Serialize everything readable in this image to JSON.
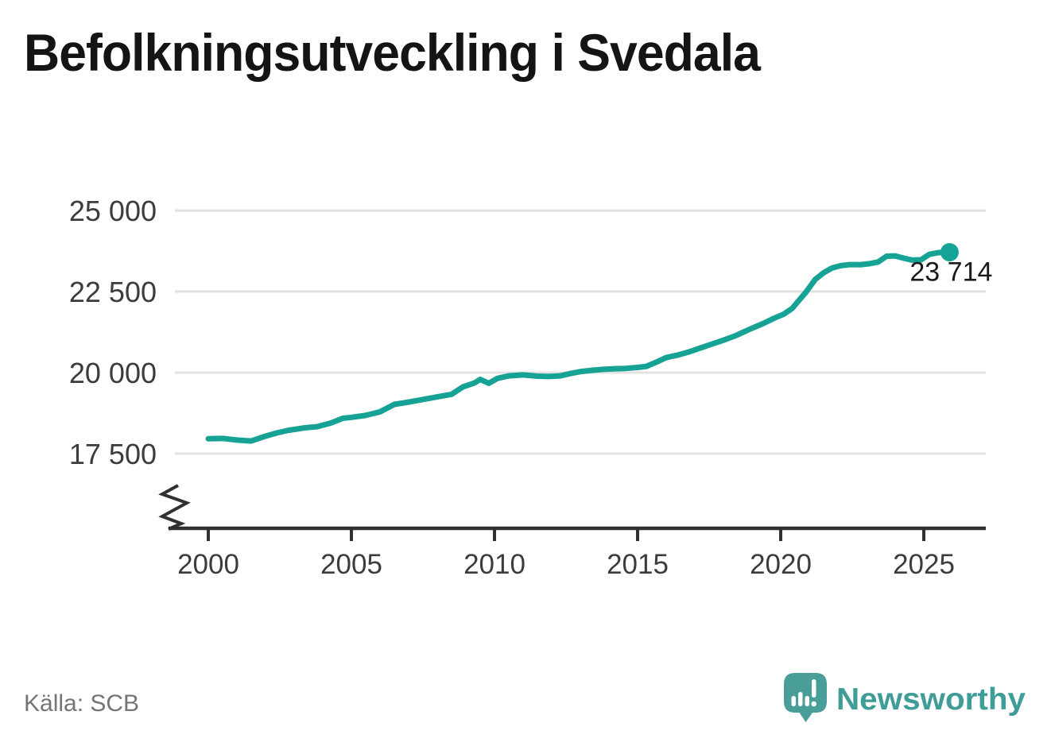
{
  "title": "Befolkningsutveckling i Svedala",
  "source": "Källa: SCB",
  "brand": {
    "name": "Newsworthy"
  },
  "colors": {
    "line": "#16a294",
    "grid": "#e2e2e2",
    "axis": "#303030",
    "tick_text": "#3c3c3c",
    "label_text": "#1a1a1a",
    "source_text": "#757575",
    "logo_bubble": "#4a9e99",
    "brand_teal": "#3f9c96"
  },
  "chart_data": {
    "type": "line",
    "title": "Befolkningsutveckling i Svedala",
    "xlabel": "",
    "ylabel": "",
    "xlim": [
      2000,
      2026.3
    ],
    "ylim": [
      17500,
      25000
    ],
    "grid": "horizontal",
    "legend": "none",
    "axis_break_bottom_left": true,
    "end_label": "23 714",
    "end_value": 23714,
    "yticks": [
      {
        "value": 25000,
        "label": "25 000"
      },
      {
        "value": 22500,
        "label": "22 500"
      },
      {
        "value": 20000,
        "label": "20 000"
      },
      {
        "value": 17500,
        "label": "17 500"
      }
    ],
    "xticks": [
      {
        "value": 2000,
        "label": "2000"
      },
      {
        "value": 2005,
        "label": "2005"
      },
      {
        "value": 2010,
        "label": "2010"
      },
      {
        "value": 2015,
        "label": "2015"
      },
      {
        "value": 2020,
        "label": "2020"
      },
      {
        "value": 2025,
        "label": "2025"
      }
    ],
    "series": [
      {
        "points": [
          [
            2000.0,
            17960
          ],
          [
            2000.5,
            17970
          ],
          [
            2001.0,
            17920
          ],
          [
            2001.5,
            17890
          ],
          [
            2002.0,
            18040
          ],
          [
            2002.4,
            18140
          ],
          [
            2002.8,
            18220
          ],
          [
            2003.1,
            18260
          ],
          [
            2003.4,
            18300
          ],
          [
            2003.8,
            18330
          ],
          [
            2004.3,
            18450
          ],
          [
            2004.7,
            18590
          ],
          [
            2005.0,
            18620
          ],
          [
            2005.5,
            18680
          ],
          [
            2006.0,
            18790
          ],
          [
            2006.5,
            19020
          ],
          [
            2007.0,
            19090
          ],
          [
            2007.5,
            19170
          ],
          [
            2008.0,
            19250
          ],
          [
            2008.5,
            19330
          ],
          [
            2008.9,
            19560
          ],
          [
            2009.3,
            19680
          ],
          [
            2009.5,
            19790
          ],
          [
            2009.8,
            19670
          ],
          [
            2010.1,
            19820
          ],
          [
            2010.5,
            19900
          ],
          [
            2011.0,
            19930
          ],
          [
            2011.5,
            19890
          ],
          [
            2011.9,
            19880
          ],
          [
            2012.3,
            19900
          ],
          [
            2012.7,
            19980
          ],
          [
            2013.0,
            20030
          ],
          [
            2013.4,
            20070
          ],
          [
            2013.8,
            20100
          ],
          [
            2014.2,
            20120
          ],
          [
            2014.6,
            20130
          ],
          [
            2015.0,
            20160
          ],
          [
            2015.3,
            20190
          ],
          [
            2015.7,
            20340
          ],
          [
            2016.0,
            20465
          ],
          [
            2016.4,
            20540
          ],
          [
            2016.8,
            20640
          ],
          [
            2017.2,
            20760
          ],
          [
            2017.6,
            20880
          ],
          [
            2018.0,
            21000
          ],
          [
            2018.4,
            21130
          ],
          [
            2018.7,
            21250
          ],
          [
            2019.0,
            21370
          ],
          [
            2019.4,
            21520
          ],
          [
            2019.8,
            21690
          ],
          [
            2020.1,
            21800
          ],
          [
            2020.4,
            21980
          ],
          [
            2020.9,
            22500
          ],
          [
            2021.2,
            22870
          ],
          [
            2021.5,
            23080
          ],
          [
            2021.8,
            23230
          ],
          [
            2022.1,
            23300
          ],
          [
            2022.4,
            23330
          ],
          [
            2022.8,
            23330
          ],
          [
            2023.1,
            23360
          ],
          [
            2023.4,
            23410
          ],
          [
            2023.7,
            23590
          ],
          [
            2024.0,
            23600
          ],
          [
            2024.3,
            23530
          ],
          [
            2024.6,
            23470
          ],
          [
            2024.9,
            23480
          ],
          [
            2025.2,
            23650
          ],
          [
            2025.5,
            23700
          ],
          [
            2025.9,
            23714
          ]
        ]
      }
    ]
  }
}
